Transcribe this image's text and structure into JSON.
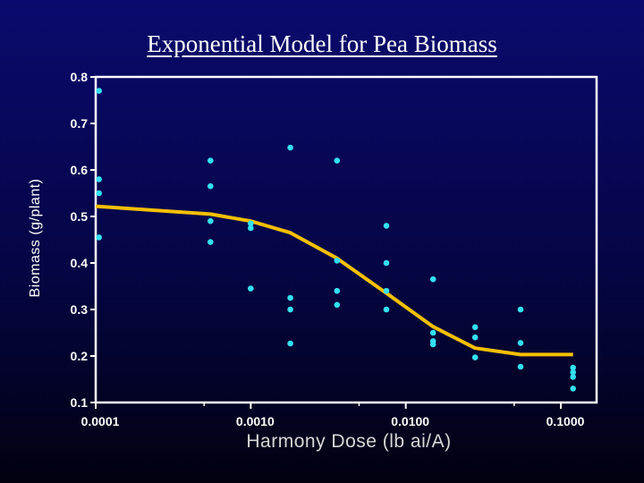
{
  "chart_data": {
    "type": "scatter",
    "title": "Exponential Model for Pea Biomass",
    "xlabel": "Harmony Dose (lb ai/A)",
    "ylabel": "Biomass (g/plant)",
    "x_scale": "log",
    "xlim": [
      0.0001,
      0.1
    ],
    "ylim": [
      0.1,
      0.8
    ],
    "grid": false,
    "x_ticks": [
      "0.0001",
      "0.0010",
      "0.0100",
      "0.1000"
    ],
    "x_tick_values": [
      0.0001,
      0.001,
      0.01,
      0.1
    ],
    "y_ticks": [
      "0.1",
      "0.2",
      "0.3",
      "0.4",
      "0.5",
      "0.6",
      "0.7",
      "0.8"
    ],
    "y_tick_values": [
      0.1,
      0.2,
      0.3,
      0.4,
      0.5,
      0.6,
      0.7,
      0.8
    ],
    "series": [
      {
        "kind": "scatter",
        "color": "#33e0f0",
        "points": [
          [
            0.000105,
            0.77
          ],
          [
            0.000105,
            0.58
          ],
          [
            0.000105,
            0.55
          ],
          [
            0.000105,
            0.455
          ],
          [
            0.00055,
            0.62
          ],
          [
            0.00055,
            0.565
          ],
          [
            0.00055,
            0.49
          ],
          [
            0.00055,
            0.445
          ],
          [
            0.001,
            0.485
          ],
          [
            0.001,
            0.475
          ],
          [
            0.001,
            0.345
          ],
          [
            0.0018,
            0.648
          ],
          [
            0.0018,
            0.325
          ],
          [
            0.0018,
            0.3
          ],
          [
            0.0018,
            0.227
          ],
          [
            0.0036,
            0.62
          ],
          [
            0.0036,
            0.405
          ],
          [
            0.0036,
            0.34
          ],
          [
            0.0036,
            0.31
          ],
          [
            0.0075,
            0.48
          ],
          [
            0.0075,
            0.4
          ],
          [
            0.0075,
            0.34
          ],
          [
            0.0075,
            0.3
          ],
          [
            0.015,
            0.365
          ],
          [
            0.015,
            0.25
          ],
          [
            0.015,
            0.232
          ],
          [
            0.015,
            0.225
          ],
          [
            0.028,
            0.262
          ],
          [
            0.028,
            0.24
          ],
          [
            0.028,
            0.197
          ],
          [
            0.055,
            0.3
          ],
          [
            0.055,
            0.228
          ],
          [
            0.055,
            0.177
          ],
          [
            0.12,
            0.175
          ],
          [
            0.12,
            0.165
          ],
          [
            0.12,
            0.155
          ],
          [
            0.12,
            0.13
          ]
        ]
      },
      {
        "kind": "line",
        "color": "#f5c000",
        "points": [
          [
            0.0001,
            0.522
          ],
          [
            0.00055,
            0.505
          ],
          [
            0.001,
            0.49
          ],
          [
            0.0018,
            0.465
          ],
          [
            0.0036,
            0.41
          ],
          [
            0.0075,
            0.335
          ],
          [
            0.015,
            0.263
          ],
          [
            0.028,
            0.217
          ],
          [
            0.055,
            0.203
          ],
          [
            0.12,
            0.203
          ]
        ]
      }
    ]
  },
  "colors": {
    "axes": "#ffffff",
    "text": "#ffffff"
  }
}
